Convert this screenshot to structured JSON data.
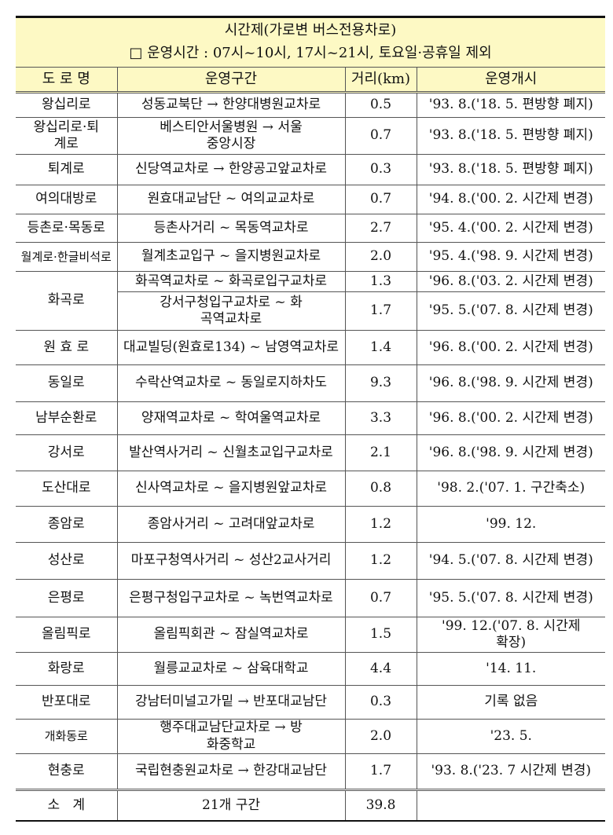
{
  "title": "시간제(가로변 버스전용차로)",
  "subtitle": "□ 운영시간 : 07시~10시, 17시~21시, 토요일·공휴일 제외",
  "header": [
    "도 로 명",
    "운영구간",
    "거리(km)",
    "운영개시"
  ],
  "rows": [
    {
      "road": "왕십리로",
      "section": "성동교북단 → 한양대병원교차로",
      "km": "0.5",
      "start": "'93. 8.('18. 5. 편방향 폐지)"
    },
    {
      "road": "왕십리로·퇴계로",
      "section": "베스티안서울병원 → 서울중앙시장",
      "km": "0.7",
      "start": "'93. 8.('18. 5. 편방향 폐지)"
    },
    {
      "road": "퇴계로",
      "section": "신당역교차로 → 한양공고앞교차로",
      "km": "0.3",
      "start": "'93. 8.('18. 5. 편방향 폐지)"
    },
    {
      "road": "여의대방로",
      "section": "원효대교남단 ~ 여의교교차로",
      "km": "0.7",
      "start": "'94. 8.('00. 2. 시간제 변경)"
    },
    {
      "road": "등촌로·목동로",
      "section": "등촌사거리 ~ 목동역교차로",
      "km": "2.7",
      "start": "'95. 4.('00. 2. 시간제 변경)"
    },
    {
      "road": "월계로·한글비석로",
      "section": "월계초교입구 ~ 을지병원교차로",
      "km": "2.0",
      "start": "'95. 4.('98. 9. 시간제 변경)"
    },
    {
      "road": "화곡로",
      "section": "화곡역교차로 ~ 화곡로입구교차로",
      "km": "1.3",
      "start": "'96. 8.('03. 2. 시간제 변경)"
    },
    {
      "road": "",
      "section": "강서구청입구교차로 ~ 화곡역교차로",
      "km": "1.7",
      "start": "'95. 5.('07. 8. 시간제 변경)"
    },
    {
      "road": "원 효 로",
      "section": "대교빌딩(원효로134) ~ 남영역교차로",
      "km": "1.4",
      "start": "'96. 8.('00. 2. 시간제 변경)"
    },
    {
      "road": "동일로",
      "section": "수락산역교차로 ~ 동일로지하차도",
      "km": "9.3",
      "start": "'96. 8.('98. 9. 시간제 변경)"
    },
    {
      "road": "남부순환로",
      "section": "양재역교차로 ~ 학여울역교차로",
      "km": "3.3",
      "start": "'96. 8.('00. 2. 시간제 변경)"
    },
    {
      "road": "강서로",
      "section": "발산역사거리 ~ 신월초교입구교차로",
      "km": "2.1",
      "start": "'96. 8.('98. 9. 시간제 변경)"
    },
    {
      "road": "도산대로",
      "section": "신사역교차로 ~ 을지병원앞교차로",
      "km": "0.8",
      "start": "'98. 2.('07. 1. 구간축소)"
    },
    {
      "road": "종암로",
      "section": "종암사거리 ~ 고려대앞교차로",
      "km": "1.2",
      "start": "'99. 12."
    },
    {
      "road": "성산로",
      "section": "마포구청역사거리 ~ 성산2교사거리",
      "km": "1.2",
      "start": "'94. 5.('07. 8. 시간제 변경)"
    },
    {
      "road": "은평로",
      "section": "은평구청입구교차로 ~ 녹번역교차로",
      "km": "0.7",
      "start": "'95. 5.('07. 8. 시간제 변경)"
    },
    {
      "road": "올림픽로",
      "section": "올림픽회관 ~ 잠실역교차로",
      "km": "1.5",
      "start": "'99. 12.('07. 8. 시간제 확장)"
    },
    {
      "road": "화랑로",
      "section": "월릉교교차로 ~ 삼육대학교",
      "km": "4.4",
      "start": "'14. 11."
    },
    {
      "road": "반포대로",
      "section": "강남터미널고가밑 → 반포대교남단",
      "km": "0.3",
      "start": "기록 없음"
    },
    {
      "road": "개화동로",
      "section": "행주대교남단교차로 → 방화중학교",
      "km": "2.0",
      "start": "'23. 5."
    },
    {
      "road": "현충로",
      "section": "국립현충원교차로 → 한강대교남단",
      "km": "1.7",
      "start": "'93. 8.('23. 7 시간제 변경)"
    }
  ],
  "total": {
    "label": "소   계",
    "section": "21개 구간",
    "km": "39.8",
    "start": ""
  },
  "colors": {
    "header_bg": "#fdf9c4"
  }
}
